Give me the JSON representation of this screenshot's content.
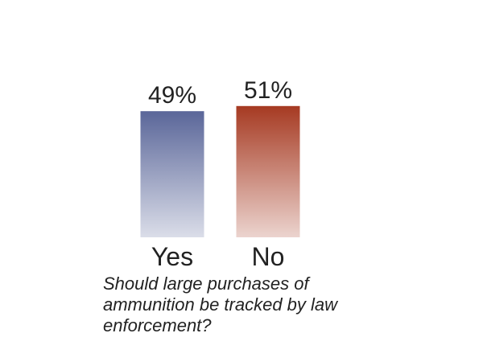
{
  "chart_data": {
    "type": "bar",
    "title": "Should large purchases of ammunition be tracked by law enforcement?",
    "categories": [
      "Yes",
      "No"
    ],
    "values": [
      49,
      51
    ],
    "value_labels": [
      "49%",
      "51%"
    ],
    "colors": [
      "#5a6699",
      "#a63a22"
    ]
  }
}
